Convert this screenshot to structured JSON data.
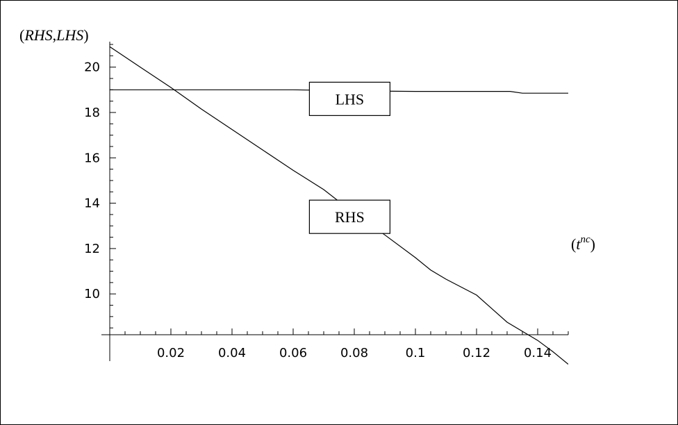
{
  "chart_data": {
    "type": "line",
    "ylabel_prefix": "(",
    "ylabel_part1": "RHS",
    "ylabel_sep": ",",
    "ylabel_part2": "LHS",
    "ylabel_suffix": ")",
    "xlabel_open": "(",
    "xlabel_base": "t",
    "xlabel_sup": "nc",
    "xlabel_close": ")",
    "xlim": [
      0,
      0.15
    ],
    "ylim": [
      8.2,
      21
    ],
    "x_axis_at_y": 8.2,
    "x_ticks": [
      0.02,
      0.04,
      0.06,
      0.08,
      0.1,
      0.12,
      0.14
    ],
    "x_tick_labels": [
      "0.02",
      "0.04",
      "0.06",
      "0.08",
      "0.1",
      "0.12",
      "0.14"
    ],
    "y_ticks": [
      10,
      12,
      14,
      16,
      18,
      20
    ],
    "y_tick_labels": [
      "10",
      "12",
      "14",
      "16",
      "18",
      "20"
    ],
    "grid": false,
    "series": [
      {
        "name": "LHS",
        "color": "#000000",
        "x": [
          0,
          0.02,
          0.04,
          0.06,
          0.08,
          0.1,
          0.12,
          0.131,
          0.135,
          0.14,
          0.15
        ],
        "y": [
          19,
          19,
          19,
          19,
          18.95,
          18.93,
          18.93,
          18.93,
          18.85,
          18.85,
          18.85
        ]
      },
      {
        "name": "RHS",
        "color": "#000000",
        "x": [
          0,
          0.005,
          0.01,
          0.02,
          0.03,
          0.04,
          0.05,
          0.06,
          0.07,
          0.08,
          0.09,
          0.1,
          0.105,
          0.11,
          0.12,
          0.125,
          0.13,
          0.14,
          0.145,
          0.15
        ],
        "y": [
          20.9,
          20.45,
          20.0,
          19.1,
          18.15,
          17.25,
          16.35,
          15.45,
          14.6,
          13.55,
          12.6,
          11.6,
          11.05,
          10.65,
          9.95,
          9.35,
          8.75,
          7.95,
          7.45,
          6.9
        ]
      }
    ],
    "annotations": [
      {
        "text": "LHS",
        "x": 0.0785,
        "y": 18.6
      },
      {
        "text": "RHS",
        "x": 0.0785,
        "y": 13.4
      }
    ]
  }
}
